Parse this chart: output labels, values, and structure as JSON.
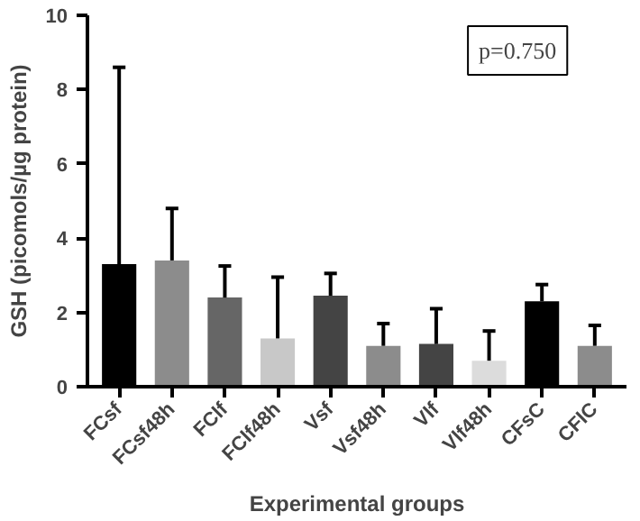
{
  "chart_data": {
    "type": "bar",
    "xlabel": "Experimental groups",
    "ylabel": "GSH (picomols/µg protein)",
    "categories": [
      "FCsf",
      "FCsf48h",
      "FClf",
      "FClf48h",
      "Vsf",
      "Vsf48h",
      "Vlf",
      "Vlf48h",
      "CFsC",
      "CFlC"
    ],
    "values": [
      3.3,
      3.4,
      2.4,
      1.3,
      2.45,
      1.1,
      1.15,
      0.7,
      2.3,
      1.1
    ],
    "errors": [
      [
        3.3,
        8.6
      ],
      [
        3.4,
        4.8
      ],
      [
        2.4,
        3.25
      ],
      [
        1.3,
        2.95
      ],
      [
        2.45,
        3.05
      ],
      [
        1.1,
        1.7
      ],
      [
        1.15,
        2.1
      ],
      [
        0.7,
        1.5
      ],
      [
        2.3,
        2.75
      ],
      [
        1.1,
        1.65
      ]
    ],
    "colors": [
      "#000000",
      "#8c8c8c",
      "#666666",
      "#c8c8c8",
      "#444444",
      "#8c8c8c",
      "#444444",
      "#dcdcdc",
      "#000000",
      "#8c8c8c"
    ],
    "ylim": [
      0,
      10
    ],
    "yticks": [
      0,
      2,
      4,
      6,
      8,
      10
    ],
    "annotations": [
      "p=0.750"
    ],
    "grid": false
  }
}
